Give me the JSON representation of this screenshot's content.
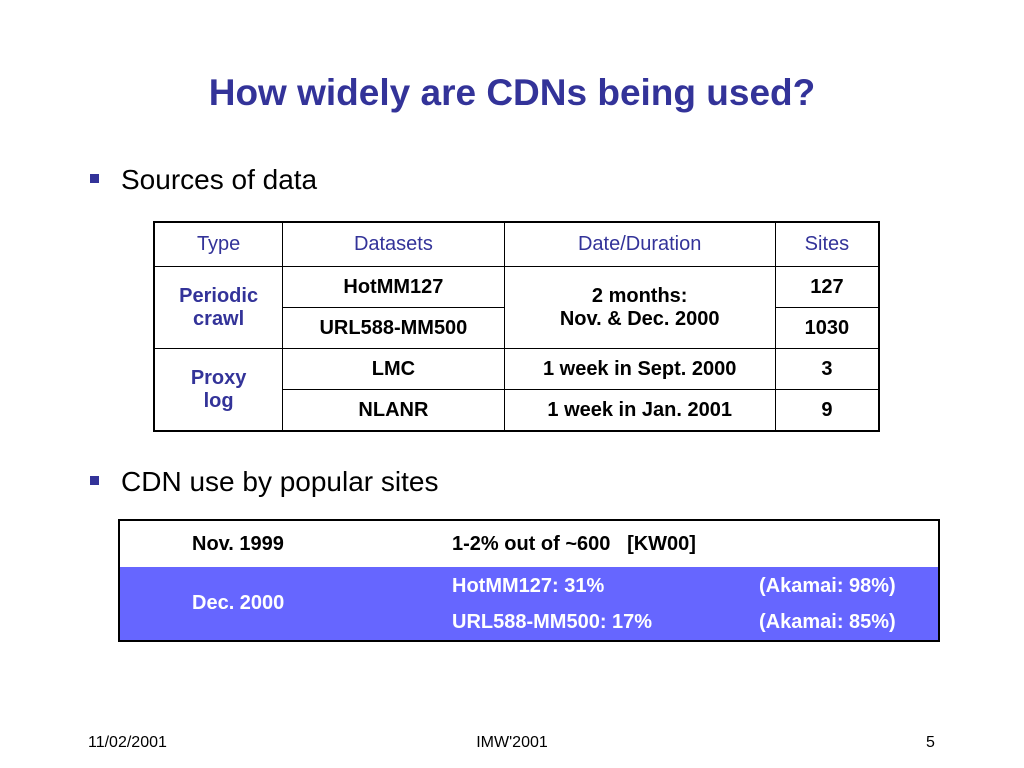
{
  "title": "How widely are CDNs being used?",
  "bullets": [
    "Sources of data",
    "CDN use by popular sites"
  ],
  "sources_table": {
    "header": [
      "Type",
      "Datasets",
      "Date/Duration",
      "Sites"
    ],
    "rows": [
      {
        "type": [
          "Periodic",
          "crawl"
        ],
        "dataset": "HotMM127",
        "date": [
          "2 months:",
          "Nov. & Dec. 2000"
        ],
        "sites": "127"
      },
      {
        "dataset": "URL588-MM500",
        "sites": "1030"
      },
      {
        "type": [
          "Proxy",
          "log"
        ],
        "dataset": "LMC",
        "date": [
          "1 week in Sept. 2000"
        ],
        "sites": "3"
      },
      {
        "dataset": "NLANR",
        "date": [
          "1 week in Jan. 2001"
        ],
        "sites": "9"
      }
    ]
  },
  "usage_table": {
    "rows": [
      {
        "period": "Nov. 1999",
        "entries": [
          [
            "1-2% out of ~600",
            "[KW00]"
          ]
        ]
      },
      {
        "period": "Dec. 2000",
        "entries": [
          [
            "HotMM127: 31%",
            "(Akamai: 98%)"
          ],
          [
            "URL588-MM500: 17%",
            "(Akamai: 85%)"
          ]
        ]
      }
    ]
  },
  "footer": {
    "date": "11/02/2001",
    "event": "IMW'2001",
    "page": "5"
  }
}
